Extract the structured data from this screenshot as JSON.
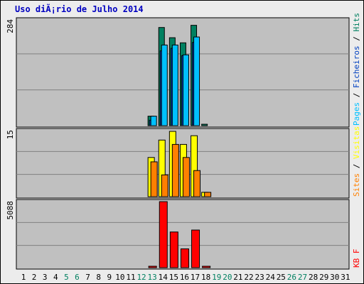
{
  "title": "Uso diÃ¡rio de Julho 2014",
  "chart_data": [
    {
      "type": "bar",
      "panel": "pages-files-hits",
      "ymax_label": "284",
      "ylim": [
        0,
        284
      ],
      "legend": [
        {
          "label": "Pages",
          "color": "#00c0ff"
        },
        {
          "label": "Ficheiros",
          "color": "#0040c0"
        },
        {
          "label": "Hits",
          "color": "#008060"
        }
      ],
      "x": [
        "1",
        "2",
        "3",
        "4",
        "5",
        "6",
        "7",
        "8",
        "9",
        "10",
        "11",
        "12",
        "13",
        "14",
        "15",
        "16",
        "17",
        "18",
        "19",
        "20",
        "21",
        "22",
        "23",
        "24",
        "25",
        "26",
        "27",
        "28",
        "29",
        "30",
        "31"
      ],
      "series": [
        {
          "name": "Hits",
          "color": "#008060",
          "values": [
            0,
            0,
            0,
            0,
            0,
            0,
            0,
            0,
            0,
            0,
            0,
            0,
            26,
            269,
            241,
            227,
            275,
            3,
            0,
            0,
            0,
            0,
            0,
            0,
            0,
            0,
            0,
            0,
            0,
            0,
            0
          ]
        },
        {
          "name": "Ficheiros",
          "color": "#0040c0",
          "values": [
            0,
            0,
            0,
            0,
            0,
            0,
            0,
            0,
            0,
            0,
            0,
            0,
            15,
            205,
            212,
            192,
            228,
            0,
            0,
            0,
            0,
            0,
            0,
            0,
            0,
            0,
            0,
            0,
            0,
            0,
            0
          ]
        },
        {
          "name": "Pages",
          "color": "#00c0ff",
          "values": [
            0,
            0,
            0,
            0,
            0,
            0,
            0,
            0,
            0,
            0,
            0,
            0,
            26,
            221,
            221,
            194,
            243,
            0,
            0,
            0,
            0,
            0,
            0,
            0,
            0,
            0,
            0,
            0,
            0,
            0,
            0
          ]
        }
      ]
    },
    {
      "type": "bar",
      "panel": "sites-visits",
      "ymax_label": "15",
      "ylim": [
        0,
        15
      ],
      "legend": [
        {
          "label": "Sites",
          "color": "#ff8000"
        },
        {
          "label": "Visitas",
          "color": "#ffff00"
        }
      ],
      "x": [
        "1",
        "2",
        "3",
        "4",
        "5",
        "6",
        "7",
        "8",
        "9",
        "10",
        "11",
        "12",
        "13",
        "14",
        "15",
        "16",
        "17",
        "18",
        "19",
        "20",
        "21",
        "22",
        "23",
        "24",
        "25",
        "26",
        "27",
        "28",
        "29",
        "30",
        "31"
      ],
      "series": [
        {
          "name": "Visitas",
          "color": "#ffff00",
          "values": [
            0,
            0,
            0,
            0,
            0,
            0,
            0,
            0,
            0,
            0,
            0,
            0,
            9,
            13,
            15,
            12,
            14,
            1,
            0,
            0,
            0,
            0,
            0,
            0,
            0,
            0,
            0,
            0,
            0,
            0,
            0
          ]
        },
        {
          "name": "Sites",
          "color": "#ff8000",
          "values": [
            0,
            0,
            0,
            0,
            0,
            0,
            0,
            0,
            0,
            0,
            0,
            0,
            8,
            5,
            12,
            9,
            6,
            1,
            0,
            0,
            0,
            0,
            0,
            0,
            0,
            0,
            0,
            0,
            0,
            0,
            0
          ]
        }
      ]
    },
    {
      "type": "bar",
      "panel": "kbytes",
      "ymax_label": "5088",
      "ylim": [
        0,
        5088
      ],
      "legend": [
        {
          "label": "KB F",
          "color": "#ff0000"
        }
      ],
      "x": [
        "1",
        "2",
        "3",
        "4",
        "5",
        "6",
        "7",
        "8",
        "9",
        "10",
        "11",
        "12",
        "13",
        "14",
        "15",
        "16",
        "17",
        "18",
        "19",
        "20",
        "21",
        "22",
        "23",
        "24",
        "25",
        "26",
        "27",
        "28",
        "29",
        "30",
        "31"
      ],
      "series": [
        {
          "name": "KB F",
          "color": "#ff0000",
          "values": [
            0,
            0,
            0,
            0,
            0,
            0,
            0,
            0,
            0,
            0,
            0,
            0,
            30,
            5088,
            2750,
            1450,
            2900,
            30,
            0,
            0,
            0,
            0,
            0,
            0,
            0,
            0,
            0,
            0,
            0,
            0,
            0
          ]
        }
      ]
    }
  ],
  "weekend_days": [
    "5",
    "6",
    "12",
    "13",
    "19",
    "20",
    "26",
    "27"
  ],
  "colors": {
    "plot_bg": "#c0c0c0",
    "frame_bg": "#ececec",
    "weekday_label": "#000000",
    "weekend_label": "#008060",
    "title": "#0000c0"
  }
}
